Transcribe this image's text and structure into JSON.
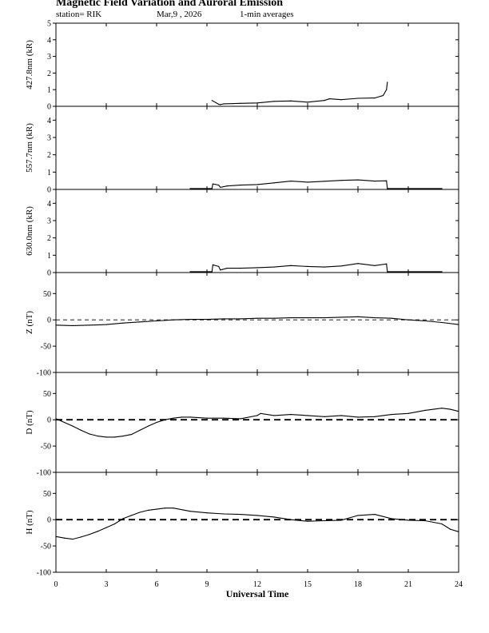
{
  "header": {
    "title": "Magnetic Field Variation and Auroral Emission",
    "station": "station= RIK",
    "date": "Mar,9  , 2026",
    "averages": "1-min averages"
  },
  "chart_data": [
    {
      "type": "line",
      "ylabel": "427.8nm (kR)",
      "ylim": [
        0,
        5
      ],
      "yticks": [
        "0",
        "1",
        "2",
        "3",
        "4",
        "5"
      ],
      "x": [
        9.3,
        9.4,
        9.7,
        9.8,
        10.0,
        11.0,
        12.0,
        13.0,
        14.0,
        15.0,
        16.0,
        16.3,
        17.0,
        18.0,
        19.0,
        19.5,
        19.7,
        19.75
      ],
      "y": [
        0.35,
        0.3,
        0.12,
        0.1,
        0.15,
        0.18,
        0.2,
        0.3,
        0.32,
        0.25,
        0.35,
        0.45,
        0.4,
        0.48,
        0.5,
        0.65,
        1.0,
        1.45
      ]
    },
    {
      "type": "line",
      "ylabel": "557.7nm (kR)",
      "ylim": [
        0,
        4.8
      ],
      "yticks": [
        "0",
        "1",
        "2",
        "3",
        "4"
      ],
      "x": [
        8.0,
        9.3,
        9.35,
        9.7,
        9.8,
        10.2,
        11.0,
        12.0,
        13.0,
        14.0,
        15.0,
        16.0,
        17.0,
        18.0,
        19.0,
        19.7,
        19.75,
        23.0
      ],
      "y": [
        0.05,
        0.05,
        0.32,
        0.25,
        0.12,
        0.2,
        0.25,
        0.28,
        0.38,
        0.48,
        0.42,
        0.47,
        0.52,
        0.55,
        0.48,
        0.5,
        0.05,
        0.05
      ]
    },
    {
      "type": "line",
      "ylabel": "630.0nm (kR)",
      "ylim": [
        0,
        4.8
      ],
      "yticks": [
        "0",
        "1",
        "2",
        "3",
        "4"
      ],
      "x": [
        8.0,
        9.3,
        9.35,
        9.7,
        9.8,
        10.2,
        11.0,
        12.0,
        13.0,
        14.0,
        15.0,
        16.0,
        17.0,
        18.0,
        19.0,
        19.7,
        19.75,
        23.0
      ],
      "y": [
        0.05,
        0.05,
        0.45,
        0.35,
        0.15,
        0.25,
        0.25,
        0.28,
        0.32,
        0.4,
        0.35,
        0.32,
        0.38,
        0.52,
        0.4,
        0.5,
        0.05,
        0.05
      ]
    },
    {
      "type": "line",
      "ylabel": "Z (nT)",
      "ylim": [
        -100,
        90
      ],
      "yticks": [
        "50",
        "0",
        "-50",
        "-100"
      ],
      "zero_line": "dashed-thin",
      "x": [
        0,
        1,
        2,
        3,
        4,
        5,
        6,
        7,
        8,
        9,
        10,
        11,
        12,
        13,
        14,
        15,
        16,
        17,
        18,
        19,
        20,
        21,
        22,
        23,
        24
      ],
      "y": [
        -10,
        -11,
        -10,
        -9,
        -6,
        -4,
        -2,
        0,
        1,
        1,
        2,
        2,
        3,
        3,
        4,
        4,
        4,
        5,
        6,
        4,
        3,
        0,
        -2,
        -5,
        -9
      ]
    },
    {
      "type": "line",
      "ylabel": "D (nT)",
      "ylim": [
        -100,
        90
      ],
      "yticks": [
        "50",
        "0",
        "-50",
        "-100"
      ],
      "zero_line": "dashed-thick",
      "x": [
        0,
        0.5,
        1,
        1.5,
        2,
        2.5,
        3,
        3.5,
        4,
        4.5,
        5,
        5.5,
        6,
        6.5,
        7,
        7.5,
        8,
        9,
        10,
        11,
        12,
        12.2,
        13,
        14,
        15,
        16,
        17,
        18,
        19,
        20,
        21,
        22,
        23,
        23.5,
        24
      ],
      "y": [
        2,
        -5,
        -12,
        -20,
        -27,
        -31,
        -33,
        -33,
        -31,
        -28,
        -20,
        -12,
        -5,
        0,
        3,
        5,
        5,
        3,
        3,
        2,
        8,
        12,
        8,
        10,
        8,
        6,
        8,
        5,
        6,
        10,
        12,
        18,
        22,
        20,
        16
      ]
    },
    {
      "type": "line",
      "ylabel": "H (nT)",
      "ylim": [
        -100,
        90
      ],
      "yticks": [
        "50",
        "0",
        "-50",
        "-100"
      ],
      "zero_line": "dashed-thick",
      "x": [
        0,
        0.5,
        1,
        1.5,
        2,
        2.5,
        3,
        3.5,
        4,
        4.5,
        5,
        5.5,
        6,
        6.5,
        7,
        8,
        9,
        10,
        11,
        12,
        13,
        14,
        15,
        16,
        17,
        18,
        19,
        20,
        21,
        22,
        23,
        23.5,
        24
      ],
      "y": [
        -32,
        -35,
        -37,
        -33,
        -28,
        -22,
        -15,
        -8,
        2,
        8,
        14,
        18,
        20,
        22,
        22,
        16,
        13,
        11,
        10,
        8,
        5,
        0,
        -3,
        -2,
        -1,
        8,
        10,
        2,
        -1,
        -2,
        -8,
        -18,
        -23
      ]
    }
  ],
  "x_axis": {
    "label": "Universal Time",
    "ticks": [
      "0",
      "3",
      "6",
      "9",
      "12",
      "15",
      "18",
      "21",
      "24"
    ],
    "xlim": [
      0,
      24
    ]
  }
}
